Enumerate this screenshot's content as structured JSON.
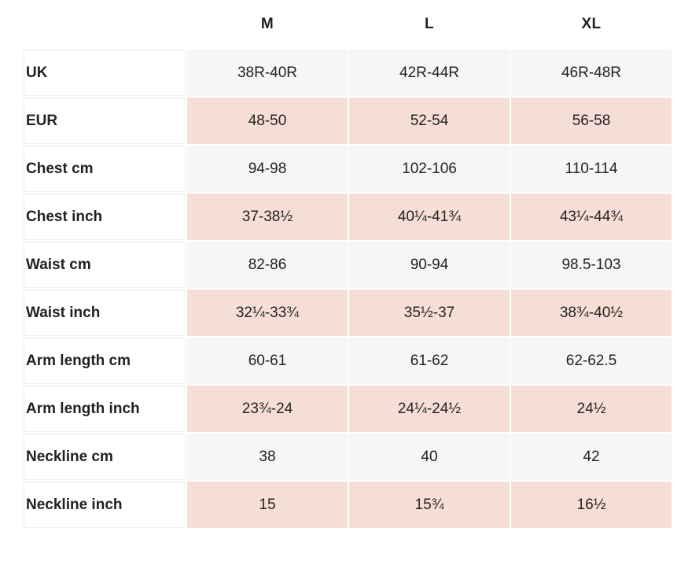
{
  "table": {
    "columns": [
      "M",
      "L",
      "XL"
    ],
    "rows": [
      {
        "label": "UK",
        "values": [
          "38R-40R",
          "42R-44R",
          "46R-48R"
        ]
      },
      {
        "label": "EUR",
        "values": [
          "48-50",
          "52-54",
          "56-58"
        ]
      },
      {
        "label": "Chest cm",
        "values": [
          "94-98",
          "102-106",
          "110-114"
        ]
      },
      {
        "label": "Chest inch",
        "values": [
          "37-38½",
          "40¼-41¾",
          "43¼-44¾"
        ]
      },
      {
        "label": "Waist cm",
        "values": [
          "82-86",
          "90-94",
          "98.5-103"
        ]
      },
      {
        "label": "Waist inch",
        "values": [
          "32¼-33¾",
          "35½-37",
          "38¾-40½"
        ]
      },
      {
        "label": "Arm length cm",
        "values": [
          "60-61",
          "61-62",
          "62-62.5"
        ]
      },
      {
        "label": "Arm length inch",
        "values": [
          "23¾-24",
          "24¼-24½",
          "24½"
        ]
      },
      {
        "label": "Neckline cm",
        "values": [
          "38",
          "40",
          "42"
        ]
      },
      {
        "label": "Neckline inch",
        "values": [
          "15",
          "15¾",
          "16½"
        ]
      }
    ]
  },
  "colors": {
    "row_alt_light": "#f7f6f4",
    "row_alt_pink": "#f5ded6",
    "text": "#222222",
    "label_border": "#f1eeeb"
  }
}
